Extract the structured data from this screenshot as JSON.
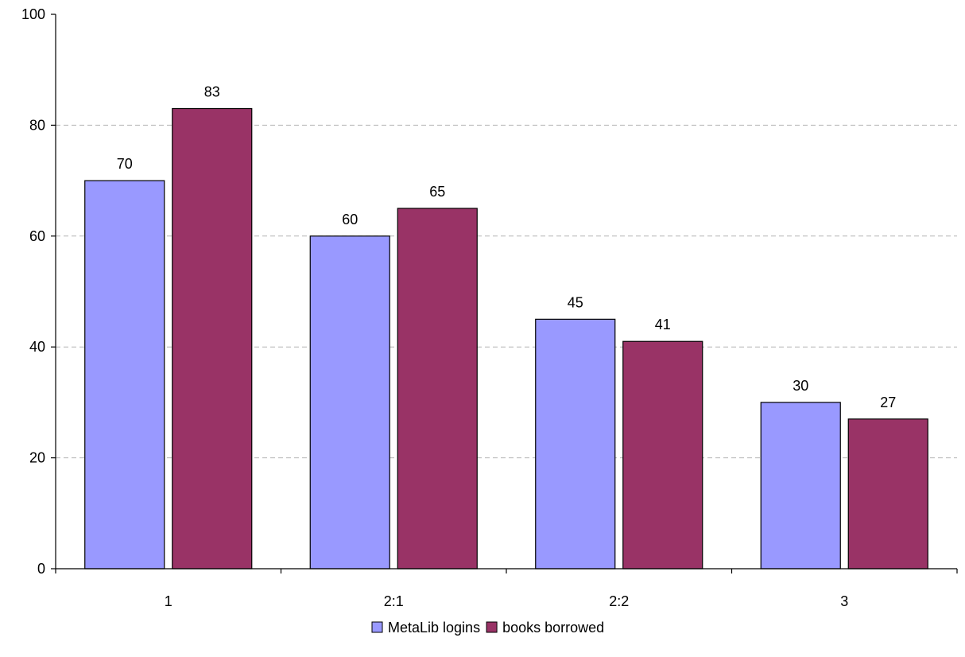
{
  "chart_data": {
    "type": "bar",
    "categories": [
      "1",
      "2:1",
      "2:2",
      "3"
    ],
    "series": [
      {
        "name": "MetaLib logins",
        "values": [
          70,
          60,
          45,
          30
        ],
        "color": "#9999FF"
      },
      {
        "name": "books borrowed",
        "values": [
          83,
          65,
          41,
          27
        ],
        "color": "#993366"
      }
    ],
    "ylim": [
      0,
      100
    ],
    "yticks": [
      0,
      20,
      40,
      60,
      80,
      100
    ],
    "grid": true,
    "legend_position": "bottom",
    "title": "",
    "xlabel": "",
    "ylabel": ""
  }
}
